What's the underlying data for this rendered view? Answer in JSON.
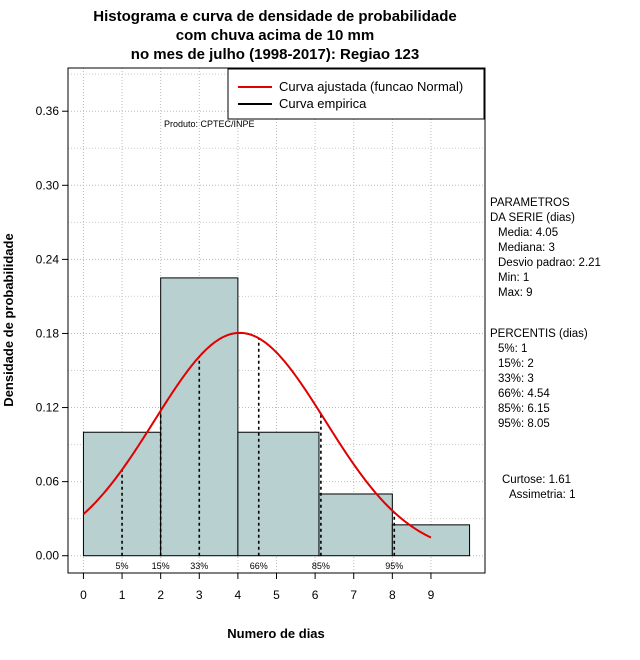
{
  "chart_data": {
    "type": "bar",
    "title_lines": [
      "Histograma e curva de densidade de probabilidade",
      "com chuva acima de 10 mm",
      "no mes de julho (1998-2017): Regiao 123"
    ],
    "xlabel": "Numero de dias",
    "ylabel": "Densidade de probabilidade",
    "xlim": [
      -0.4,
      10.4
    ],
    "ylim": [
      -0.014,
      0.395
    ],
    "x_ticks": [
      0,
      1,
      2,
      3,
      4,
      5,
      6,
      7,
      8,
      9
    ],
    "y_ticks": [
      0.0,
      0.06,
      0.12,
      0.18,
      0.24,
      0.3,
      0.36
    ],
    "y_tick_labels": [
      "0.00",
      "0.06",
      "0.12",
      "0.18",
      "0.24",
      "0.30",
      "0.36"
    ],
    "bins": [
      {
        "start": 0,
        "end": 2,
        "density": 0.1
      },
      {
        "start": 2,
        "end": 4,
        "density": 0.225
      },
      {
        "start": 4,
        "end": 6.1,
        "density": 0.1
      },
      {
        "start": 6.1,
        "end": 8,
        "density": 0.05
      },
      {
        "start": 8,
        "end": 10,
        "density": 0.025
      }
    ],
    "normal_curve": {
      "mean": 4.05,
      "sd": 2.21,
      "x_from": 0,
      "x_to": 9,
      "color": "#e00000",
      "name": "Curva ajustada (funcao Normal)"
    },
    "empirical_curve": {
      "color": "#000000",
      "name": "Curva empirica"
    },
    "percentile_lines": [
      {
        "x": 1,
        "label": "5%"
      },
      {
        "x": 2,
        "label": "15%"
      },
      {
        "x": 3,
        "label": "33%"
      },
      {
        "x": 4.54,
        "label": "66%"
      },
      {
        "x": 6.15,
        "label": "85%"
      },
      {
        "x": 8.05,
        "label": "95%"
      }
    ],
    "bar_color": "#b8d0d0",
    "grid": true,
    "legend_position": "top-right",
    "product_label": "Produto: CPTEC/INPE"
  },
  "stats": {
    "parametros_title": "PARAMETROS\nDA SERIE (dias)",
    "parametros": [
      "Media: 4.05",
      "Mediana: 3",
      "Desvio padrao: 2.21",
      "Min: 1",
      "Max: 9"
    ],
    "percentis_title": "PERCENTIS (dias)",
    "percentis": [
      "5%: 1",
      "15%: 2",
      "33%: 3",
      "66%: 4.54",
      "85%: 6.15",
      "95%: 8.05"
    ],
    "curtose": "Curtose: 1.61",
    "assimetria": "Assimetria: 1"
  }
}
